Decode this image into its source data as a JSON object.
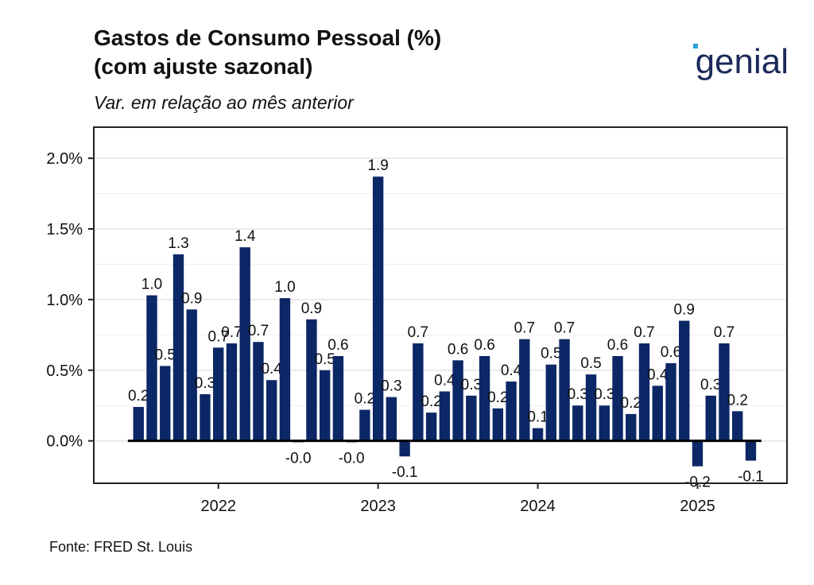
{
  "chart_data": {
    "type": "bar",
    "title": [
      "Gastos de Consumo Pessoal (%)",
      "(com ajuste sazonal)"
    ],
    "subtitle": "Var. em relação ao mês anterior",
    "logo": "genial",
    "source": "Fonte: FRED St. Louis",
    "color": "#0c2766",
    "x": [
      "2021-07",
      "2021-08",
      "2021-09",
      "2021-10",
      "2021-11",
      "2021-12",
      "2022-01",
      "2022-02",
      "2022-03",
      "2022-04",
      "2022-05",
      "2022-06",
      "2022-07",
      "2022-08",
      "2022-09",
      "2022-10",
      "2022-11",
      "2022-12",
      "2023-01",
      "2023-02",
      "2023-03",
      "2023-04",
      "2023-05",
      "2023-06",
      "2023-07",
      "2023-08",
      "2023-09",
      "2023-10",
      "2023-11",
      "2023-12",
      "2024-01",
      "2024-02",
      "2024-03",
      "2024-04",
      "2024-05",
      "2024-06",
      "2024-07",
      "2024-08",
      "2024-09",
      "2024-10",
      "2024-11",
      "2024-12",
      "2025-01",
      "2025-02",
      "2025-03",
      "2025-04",
      "2025-05"
    ],
    "values": [
      0.24,
      1.03,
      0.53,
      1.32,
      0.93,
      0.33,
      0.66,
      0.69,
      1.37,
      0.7,
      0.43,
      1.01,
      -0.01,
      0.86,
      0.5,
      0.6,
      -0.01,
      0.22,
      1.87,
      0.31,
      -0.11,
      0.69,
      0.2,
      0.35,
      0.57,
      0.32,
      0.6,
      0.23,
      0.42,
      0.72,
      0.09,
      0.54,
      0.72,
      0.25,
      0.47,
      0.25,
      0.6,
      0.19,
      0.69,
      0.39,
      0.55,
      0.85,
      -0.18,
      0.32,
      0.69,
      0.21,
      -0.14
    ],
    "value_labels": [
      "0.2",
      "1.0",
      "0.5",
      "1.3",
      "0.9",
      "0.3",
      "0.7",
      "0.7",
      "1.4",
      "0.7",
      "0.4",
      "1.0",
      "-0.0",
      "0.9",
      "0.5",
      "0.6",
      "-0.0",
      "0.2",
      "1.9",
      "0.3",
      "-0.1",
      "0.7",
      "0.2",
      "0.4",
      "0.6",
      "0.3",
      "0.6",
      "0.2",
      "0.4",
      "0.7",
      "0.1",
      "0.5",
      "0.7",
      "0.3",
      "0.5",
      "0.3",
      "0.6",
      "0.2",
      "0.7",
      "0.4",
      "0.6",
      "0.9",
      "-0.2",
      "0.3",
      "0.7",
      "0.2",
      "-0.1"
    ],
    "xlim": [
      2021.22,
      2025.56
    ],
    "xticks": [
      2022,
      2023,
      2024,
      2025
    ],
    "ylim": [
      -0.3,
      2.22
    ],
    "yticks": [
      {
        "value": 0.0,
        "label": "0.0%"
      },
      {
        "value": 0.5,
        "label": "0.5%"
      },
      {
        "value": 1.0,
        "label": "1.0%"
      },
      {
        "value": 1.5,
        "label": "1.5%"
      },
      {
        "value": 2.0,
        "label": "2.0%"
      }
    ],
    "grid": true
  }
}
